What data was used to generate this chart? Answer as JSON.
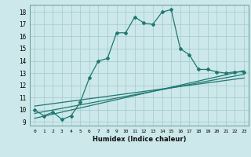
{
  "xlabel": "Humidex (Indice chaleur)",
  "bg_color": "#cce8ea",
  "grid_color": "#aacdd0",
  "line_color": "#1f7872",
  "xlim": [
    -0.5,
    23.5
  ],
  "ylim": [
    8.7,
    18.6
  ],
  "xticks": [
    0,
    1,
    2,
    3,
    4,
    5,
    6,
    7,
    8,
    9,
    10,
    11,
    12,
    13,
    14,
    15,
    16,
    17,
    18,
    19,
    20,
    21,
    22,
    23
  ],
  "yticks": [
    9,
    10,
    11,
    12,
    13,
    14,
    15,
    16,
    17,
    18
  ],
  "main_line_x": [
    0,
    1,
    2,
    3,
    4,
    5,
    6,
    7,
    8,
    9,
    10,
    11,
    12,
    13,
    14,
    15,
    16,
    17,
    18,
    19,
    20,
    21,
    22,
    23
  ],
  "main_line_y": [
    10.0,
    9.5,
    9.8,
    9.2,
    9.5,
    10.6,
    12.6,
    14.0,
    14.2,
    16.3,
    16.3,
    17.6,
    17.1,
    17.0,
    18.0,
    18.2,
    15.0,
    14.5,
    13.3,
    13.3,
    13.1,
    13.0,
    13.1,
    13.1
  ],
  "reg_line1_x": [
    0,
    23
  ],
  "reg_line1_y": [
    9.3,
    13.2
  ],
  "reg_line2_x": [
    0,
    23
  ],
  "reg_line2_y": [
    9.7,
    12.9
  ],
  "reg_line3_x": [
    0,
    23
  ],
  "reg_line3_y": [
    10.3,
    12.6
  ]
}
